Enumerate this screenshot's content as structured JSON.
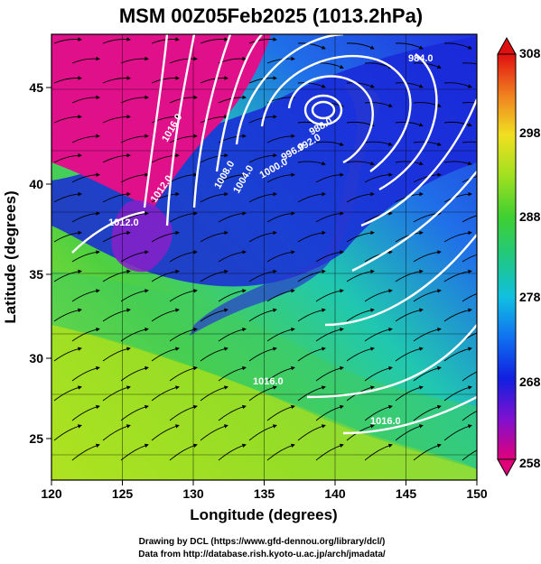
{
  "title": "MSM 00Z05Feb2025 (1013.2hPa)",
  "xlabel": "Longitude (degrees)",
  "ylabel": "Latitude  (degrees)",
  "x_ticks": [
    "120",
    "125",
    "130",
    "135",
    "140",
    "145",
    "150"
  ],
  "y_ticks": [
    "25",
    "30",
    "35",
    "40",
    "45"
  ],
  "colorbar": {
    "ticks": [
      "308",
      "298",
      "288",
      "278",
      "268",
      "258"
    ],
    "colors": [
      "#e00060",
      "#9010c0",
      "#1020e0",
      "#1090f0",
      "#20d0d0",
      "#20c060",
      "#70d020",
      "#d0e020",
      "#f0b010",
      "#f05020",
      "#e01010"
    ]
  },
  "contour_labels": [
    "984.0",
    "988.0",
    "992.0",
    "996.0",
    "1000.0",
    "1004.0",
    "1008.0",
    "1012.0",
    "1016.0",
    "1012.0",
    "1016.0",
    "1016.0"
  ],
  "credits": {
    "line1": "Drawing by DCL (https://www.gfd-dennou.org/library/dcl/)",
    "line2": "Data from http://database.rish.kyoto-u.ac.jp/arch/jmadata/"
  },
  "chart_data": {
    "type": "heatmap",
    "title": "MSM 00Z05Feb2025 (1013.2hPa)",
    "xlabel": "Longitude (degrees)",
    "ylabel": "Latitude  (degrees)",
    "xlim": [
      120,
      150
    ],
    "ylim": [
      22.5,
      48
    ],
    "colorbar_range": [
      258,
      308
    ],
    "colorbar_ticks": [
      258,
      268,
      278,
      288,
      298,
      308
    ],
    "low_center": {
      "lon": 139,
      "lat": 45.4
    },
    "isobar_labels": [
      984.0,
      988.0,
      992.0,
      996.0,
      1000.0,
      1004.0,
      1008.0,
      1012.0,
      1016.0
    ],
    "overlay": "streamlines",
    "grid": true
  }
}
